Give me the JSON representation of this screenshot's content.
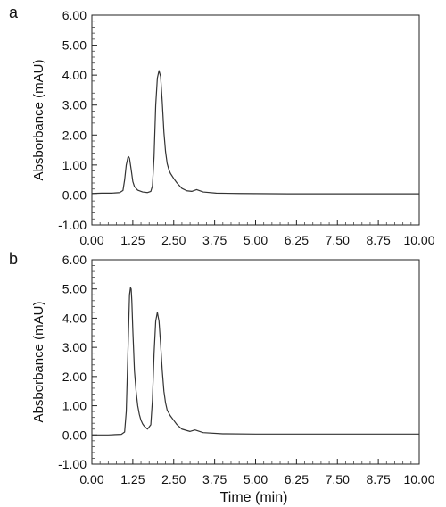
{
  "chart_data": [
    {
      "type": "line",
      "panel_label": "a",
      "ylabel": "Absborbance (mAU)",
      "xlabel": "",
      "xlim": [
        0,
        10
      ],
      "ylim": [
        -1,
        6
      ],
      "x_ticks": [
        "0.00",
        "1.25",
        "2.50",
        "3.75",
        "5.00",
        "6.25",
        "7.50",
        "8.75",
        "10.00"
      ],
      "y_ticks": [
        "-1.00",
        "0.00",
        "1.00",
        "2.00",
        "3.00",
        "4.00",
        "5.00",
        "6.00"
      ],
      "series": [
        {
          "x": [
            0,
            0.3,
            0.6,
            0.85,
            0.95,
            1.0,
            1.05,
            1.1,
            1.12,
            1.15,
            1.2,
            1.25,
            1.3,
            1.4,
            1.55,
            1.7,
            1.8,
            1.85,
            1.9,
            1.95,
            2.0,
            2.05,
            2.1,
            2.15,
            2.2,
            2.25,
            2.3,
            2.35,
            2.4,
            2.5,
            2.6,
            2.75,
            2.9,
            3.05,
            3.2,
            3.4,
            3.8,
            4.5,
            6.0,
            8.0,
            10.0
          ],
          "y": [
            0.05,
            0.06,
            0.06,
            0.08,
            0.15,
            0.5,
            1.0,
            1.25,
            1.28,
            1.22,
            0.85,
            0.45,
            0.28,
            0.16,
            0.1,
            0.08,
            0.12,
            0.3,
            1.3,
            3.0,
            3.9,
            4.15,
            3.95,
            3.1,
            2.1,
            1.45,
            1.05,
            0.85,
            0.72,
            0.55,
            0.4,
            0.22,
            0.14,
            0.12,
            0.18,
            0.1,
            0.06,
            0.05,
            0.04,
            0.04,
            0.04
          ]
        }
      ]
    },
    {
      "type": "line",
      "panel_label": "b",
      "ylabel": "Absborbance (mAU)",
      "xlabel": "Time (min)",
      "xlim": [
        0,
        10
      ],
      "ylim": [
        -1,
        6
      ],
      "x_ticks": [
        "0.00",
        "1.25",
        "2.50",
        "3.75",
        "5.00",
        "6.25",
        "7.50",
        "8.75",
        "10.00"
      ],
      "y_ticks": [
        "-1.00",
        "0.00",
        "1.00",
        "2.00",
        "3.00",
        "4.00",
        "5.00",
        "6.00"
      ],
      "series": [
        {
          "x": [
            0,
            0.5,
            0.9,
            1.0,
            1.05,
            1.1,
            1.15,
            1.18,
            1.2,
            1.22,
            1.25,
            1.3,
            1.35,
            1.4,
            1.45,
            1.5,
            1.55,
            1.6,
            1.7,
            1.8,
            1.85,
            1.9,
            1.95,
            2.0,
            2.05,
            2.1,
            2.15,
            2.2,
            2.25,
            2.3,
            2.4,
            2.5,
            2.6,
            2.75,
            2.9,
            3.0,
            3.15,
            3.4,
            4.0,
            5.0,
            7.0,
            10.0
          ],
          "y": [
            0.0,
            0.0,
            0.02,
            0.1,
            0.8,
            2.8,
            4.8,
            5.05,
            5.0,
            4.6,
            3.6,
            2.2,
            1.5,
            1.0,
            0.7,
            0.5,
            0.38,
            0.3,
            0.2,
            0.35,
            1.2,
            2.8,
            3.9,
            4.2,
            3.9,
            3.1,
            2.2,
            1.5,
            1.1,
            0.85,
            0.65,
            0.5,
            0.35,
            0.2,
            0.15,
            0.12,
            0.17,
            0.08,
            0.04,
            0.03,
            0.03,
            0.03
          ]
        }
      ]
    }
  ]
}
